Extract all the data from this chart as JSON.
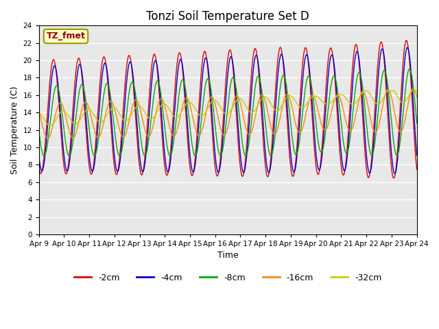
{
  "title": "Tonzi Soil Temperature Set D",
  "xlabel": "Time",
  "ylabel": "Soil Temperature (C)",
  "legend_label": "TZ_fmet",
  "series_labels": [
    "-2cm",
    "-4cm",
    "-8cm",
    "-16cm",
    "-32cm"
  ],
  "series_colors": [
    "#dd0000",
    "#0000cc",
    "#00aa00",
    "#ff8800",
    "#cccc00"
  ],
  "ylim": [
    0,
    24
  ],
  "yticks": [
    0,
    2,
    4,
    6,
    8,
    10,
    12,
    14,
    16,
    18,
    20,
    22,
    24
  ],
  "n_days": 15,
  "ppd": 288,
  "plot_bg": "#e8e8e8",
  "fig_bg": "#ffffff",
  "title_fontsize": 12,
  "label_fontsize": 9,
  "tick_fontsize": 7.5,
  "legend_fontsize": 9
}
